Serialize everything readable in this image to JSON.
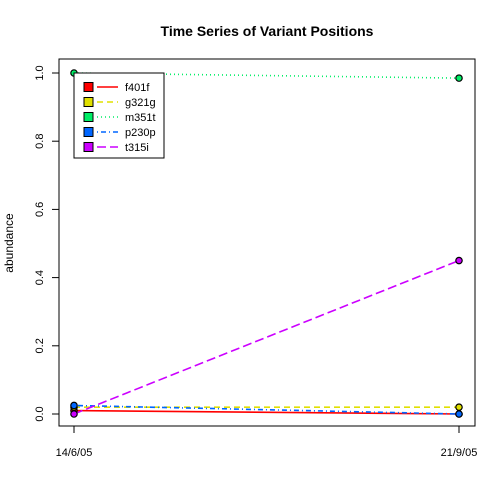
{
  "chart_data": {
    "type": "line",
    "title": "Time Series of Variant Positions",
    "xlabel": "",
    "ylabel": "abundance",
    "x": [
      "14/6/05",
      "21/9/05"
    ],
    "ylim": [
      0,
      1
    ],
    "yticks": [
      "0.0",
      "0.2",
      "0.4",
      "0.6",
      "0.8",
      "1.0"
    ],
    "grid": false,
    "legend_position": "top-left",
    "series": [
      {
        "name": "f401f",
        "values": [
          0.01,
          0.0
        ],
        "color": "#ff0000",
        "dash": "solid"
      },
      {
        "name": "g321g",
        "values": [
          0.02,
          0.02
        ],
        "color": "#e0e000",
        "dash": "dashed"
      },
      {
        "name": "m351t",
        "values": [
          1.0,
          0.985
        ],
        "color": "#00ee66",
        "dash": "dotted"
      },
      {
        "name": "p230p",
        "values": [
          0.025,
          0.0
        ],
        "color": "#0066ff",
        "dash": "dotdash"
      },
      {
        "name": "t315i",
        "values": [
          0.0,
          0.45
        ],
        "color": "#cc00ff",
        "dash": "longdash"
      }
    ]
  }
}
